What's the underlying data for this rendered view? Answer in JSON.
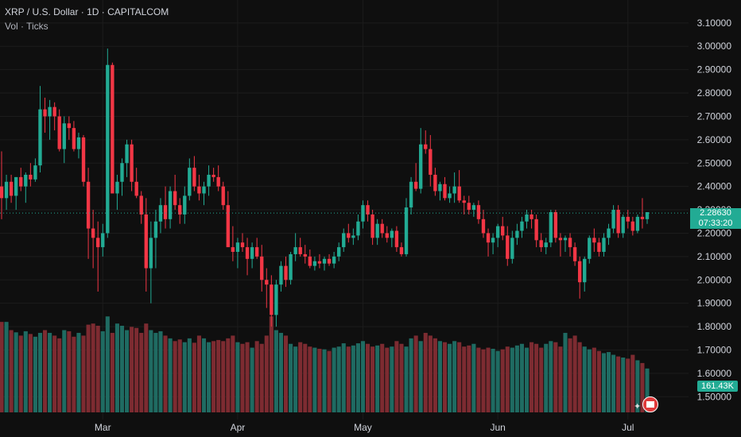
{
  "header": {
    "title": "XRP / U.S. Dollar · 1D · CAPITALCOM",
    "subtitle": "Vol · Ticks"
  },
  "price_tag": {
    "price": "2.28630",
    "countdown": "07:33:20"
  },
  "volume_tag": "161.43K",
  "colors": {
    "up": "#22ab94",
    "down": "#f23645",
    "up_vol": "#1f6b62",
    "down_vol": "#7d2b31",
    "grid": "#1c1c1c",
    "axis_text": "#d1d4dc"
  },
  "chart_data": {
    "type": "candlestick",
    "y_axis": {
      "min": 1.45,
      "max": 3.13,
      "ticks": [
        1.5,
        1.6,
        1.7,
        1.8,
        1.9,
        2.0,
        2.1,
        2.2,
        2.3,
        2.4,
        2.5,
        2.6,
        2.7,
        2.8,
        2.9,
        3.0,
        3.1
      ],
      "tick_labels": [
        "1.50000",
        "1.60000",
        "1.70000",
        "1.80000",
        "1.90000",
        "2.00000",
        "2.10000",
        "2.20000",
        "2.30000",
        "2.40000",
        "2.50000",
        "2.60000",
        "2.70000",
        "2.80000",
        "2.90000",
        "3.00000",
        "3.10000"
      ]
    },
    "x_axis": {
      "labels": [
        {
          "label": "Mar",
          "index": 21
        },
        {
          "label": "Apr",
          "index": 49
        },
        {
          "label": "May",
          "index": 75
        },
        {
          "label": "Jun",
          "index": 103
        },
        {
          "label": "Jul",
          "index": 130
        }
      ]
    },
    "last_price": 2.2863,
    "ohlc": [
      [
        2.4,
        2.55,
        2.26,
        2.35
      ],
      [
        2.35,
        2.45,
        2.3,
        2.42
      ],
      [
        2.42,
        2.45,
        2.33,
        2.36
      ],
      [
        2.36,
        2.44,
        2.3,
        2.44
      ],
      [
        2.44,
        2.48,
        2.38,
        2.4
      ],
      [
        2.4,
        2.46,
        2.33,
        2.45
      ],
      [
        2.45,
        2.5,
        2.4,
        2.43
      ],
      [
        2.43,
        2.52,
        2.42,
        2.49
      ],
      [
        2.49,
        2.83,
        2.46,
        2.73
      ],
      [
        2.73,
        2.78,
        2.63,
        2.7
      ],
      [
        2.7,
        2.77,
        2.6,
        2.74
      ],
      [
        2.74,
        2.76,
        2.64,
        2.7
      ],
      [
        2.7,
        2.73,
        2.55,
        2.56
      ],
      [
        2.56,
        2.7,
        2.5,
        2.67
      ],
      [
        2.67,
        2.7,
        2.6,
        2.65
      ],
      [
        2.65,
        2.68,
        2.55,
        2.56
      ],
      [
        2.56,
        2.63,
        2.52,
        2.61
      ],
      [
        2.61,
        2.62,
        2.4,
        2.42
      ],
      [
        2.42,
        2.48,
        2.09,
        2.22
      ],
      [
        2.22,
        2.3,
        2.05,
        2.18
      ],
      [
        2.18,
        2.25,
        1.95,
        2.14
      ],
      [
        2.14,
        2.24,
        2.1,
        2.2
      ],
      [
        2.2,
        2.99,
        2.18,
        2.92
      ],
      [
        2.92,
        2.93,
        2.38,
        2.37
      ],
      [
        2.37,
        2.45,
        2.3,
        2.42
      ],
      [
        2.42,
        2.52,
        2.36,
        2.5
      ],
      [
        2.5,
        2.6,
        2.44,
        2.58
      ],
      [
        2.58,
        2.6,
        2.38,
        2.42
      ],
      [
        2.42,
        2.48,
        2.35,
        2.36
      ],
      [
        2.36,
        2.38,
        2.24,
        2.28
      ],
      [
        2.28,
        2.35,
        1.95,
        2.05
      ],
      [
        2.05,
        2.25,
        1.9,
        2.18
      ],
      [
        2.18,
        2.3,
        2.05,
        2.25
      ],
      [
        2.25,
        2.35,
        2.2,
        2.32
      ],
      [
        2.32,
        2.4,
        2.22,
        2.26
      ],
      [
        2.26,
        2.4,
        2.22,
        2.38
      ],
      [
        2.38,
        2.45,
        2.3,
        2.32
      ],
      [
        2.32,
        2.35,
        2.24,
        2.28
      ],
      [
        2.28,
        2.4,
        2.24,
        2.36
      ],
      [
        2.36,
        2.52,
        2.34,
        2.48
      ],
      [
        2.48,
        2.53,
        2.38,
        2.4
      ],
      [
        2.4,
        2.45,
        2.34,
        2.37
      ],
      [
        2.37,
        2.42,
        2.32,
        2.4
      ],
      [
        2.4,
        2.49,
        2.36,
        2.45
      ],
      [
        2.45,
        2.48,
        2.42,
        2.44
      ],
      [
        2.44,
        2.49,
        2.38,
        2.4
      ],
      [
        2.4,
        2.42,
        2.3,
        2.32
      ],
      [
        2.32,
        2.38,
        2.15,
        2.14
      ],
      [
        2.14,
        2.23,
        2.08,
        2.12
      ],
      [
        2.12,
        2.18,
        2.05,
        2.16
      ],
      [
        2.16,
        2.2,
        2.12,
        2.14
      ],
      [
        2.14,
        2.18,
        2.02,
        2.09
      ],
      [
        2.09,
        2.16,
        2.05,
        2.14
      ],
      [
        2.14,
        2.18,
        2.09,
        2.1
      ],
      [
        2.1,
        2.15,
        1.95,
        2.0
      ],
      [
        2.0,
        2.05,
        1.88,
        1.98
      ],
      [
        1.98,
        2.02,
        1.8,
        1.85
      ],
      [
        1.85,
        2.0,
        1.8,
        1.98
      ],
      [
        1.98,
        2.08,
        1.95,
        2.06
      ],
      [
        2.06,
        2.1,
        1.97,
        2.0
      ],
      [
        2.0,
        2.12,
        1.98,
        2.11
      ],
      [
        2.11,
        2.2,
        2.08,
        2.14
      ],
      [
        2.14,
        2.18,
        2.1,
        2.11
      ],
      [
        2.11,
        2.15,
        2.07,
        2.1
      ],
      [
        2.1,
        2.13,
        2.05,
        2.06
      ],
      [
        2.06,
        2.1,
        2.04,
        2.08
      ],
      [
        2.08,
        2.11,
        2.05,
        2.07
      ],
      [
        2.07,
        2.1,
        2.04,
        2.09
      ],
      [
        2.09,
        2.11,
        2.06,
        2.07
      ],
      [
        2.07,
        2.12,
        2.05,
        2.1
      ],
      [
        2.1,
        2.16,
        2.08,
        2.14
      ],
      [
        2.14,
        2.22,
        2.12,
        2.2
      ],
      [
        2.2,
        2.24,
        2.16,
        2.18
      ],
      [
        2.18,
        2.22,
        2.15,
        2.19
      ],
      [
        2.19,
        2.28,
        2.17,
        2.25
      ],
      [
        2.25,
        2.34,
        2.22,
        2.32
      ],
      [
        2.32,
        2.34,
        2.25,
        2.28
      ],
      [
        2.28,
        2.3,
        2.15,
        2.18
      ],
      [
        2.18,
        2.26,
        2.15,
        2.24
      ],
      [
        2.24,
        2.26,
        2.18,
        2.2
      ],
      [
        2.2,
        2.23,
        2.16,
        2.18
      ],
      [
        2.18,
        2.22,
        2.14,
        2.21
      ],
      [
        2.21,
        2.23,
        2.12,
        2.14
      ],
      [
        2.14,
        2.16,
        2.1,
        2.11
      ],
      [
        2.11,
        2.35,
        2.1,
        2.31
      ],
      [
        2.31,
        2.44,
        2.28,
        2.42
      ],
      [
        2.42,
        2.5,
        2.38,
        2.39
      ],
      [
        2.39,
        2.65,
        2.37,
        2.58
      ],
      [
        2.58,
        2.64,
        2.54,
        2.56
      ],
      [
        2.56,
        2.62,
        2.4,
        2.45
      ],
      [
        2.45,
        2.48,
        2.36,
        2.38
      ],
      [
        2.38,
        2.42,
        2.34,
        2.41
      ],
      [
        2.41,
        2.44,
        2.34,
        2.35
      ],
      [
        2.35,
        2.4,
        2.33,
        2.37
      ],
      [
        2.37,
        2.46,
        2.33,
        2.4
      ],
      [
        2.4,
        2.47,
        2.33,
        2.34
      ],
      [
        2.34,
        2.36,
        2.28,
        2.33
      ],
      [
        2.33,
        2.36,
        2.28,
        2.3
      ],
      [
        2.3,
        2.33,
        2.27,
        2.32
      ],
      [
        2.32,
        2.34,
        2.24,
        2.26
      ],
      [
        2.26,
        2.3,
        2.18,
        2.2
      ],
      [
        2.2,
        2.22,
        2.1,
        2.16
      ],
      [
        2.16,
        2.2,
        2.11,
        2.18
      ],
      [
        2.18,
        2.24,
        2.14,
        2.23
      ],
      [
        2.23,
        2.27,
        2.17,
        2.19
      ],
      [
        2.19,
        2.23,
        2.06,
        2.09
      ],
      [
        2.09,
        2.21,
        2.07,
        2.18
      ],
      [
        2.18,
        2.24,
        2.15,
        2.21
      ],
      [
        2.21,
        2.27,
        2.18,
        2.25
      ],
      [
        2.25,
        2.3,
        2.22,
        2.28
      ],
      [
        2.28,
        2.3,
        2.22,
        2.26
      ],
      [
        2.26,
        2.28,
        2.14,
        2.17
      ],
      [
        2.17,
        2.2,
        2.12,
        2.14
      ],
      [
        2.14,
        2.18,
        2.11,
        2.16
      ],
      [
        2.16,
        2.3,
        2.14,
        2.29
      ],
      [
        2.29,
        2.3,
        2.16,
        2.18
      ],
      [
        2.18,
        2.2,
        2.1,
        2.17
      ],
      [
        2.17,
        2.19,
        2.12,
        2.18
      ],
      [
        2.18,
        2.2,
        2.1,
        2.14
      ],
      [
        2.14,
        2.16,
        2.06,
        2.08
      ],
      [
        2.08,
        2.1,
        1.92,
        1.99
      ],
      [
        1.99,
        2.1,
        1.95,
        2.09
      ],
      [
        2.09,
        2.19,
        2.07,
        2.18
      ],
      [
        2.18,
        2.22,
        2.12,
        2.16
      ],
      [
        2.16,
        2.18,
        2.1,
        2.12
      ],
      [
        2.12,
        2.2,
        2.1,
        2.18
      ],
      [
        2.18,
        2.24,
        2.15,
        2.22
      ],
      [
        2.22,
        2.32,
        2.2,
        2.3
      ],
      [
        2.3,
        2.32,
        2.18,
        2.2
      ],
      [
        2.2,
        2.28,
        2.18,
        2.27
      ],
      [
        2.27,
        2.3,
        2.22,
        2.25
      ],
      [
        2.25,
        2.27,
        2.19,
        2.21
      ],
      [
        2.21,
        2.28,
        2.2,
        2.27
      ],
      [
        2.27,
        2.35,
        2.22,
        2.26
      ],
      [
        2.26,
        2.29,
        2.24,
        2.29
      ]
    ],
    "volume": [
      165,
      165,
      150,
      146,
      140,
      148,
      143,
      138,
      145,
      150,
      145,
      140,
      135,
      150,
      148,
      138,
      145,
      140,
      160,
      162,
      158,
      148,
      175,
      145,
      162,
      158,
      150,
      156,
      154,
      145,
      162,
      150,
      145,
      148,
      140,
      135,
      130,
      133,
      128,
      135,
      127,
      140,
      135,
      128,
      130,
      132,
      130,
      135,
      140,
      128,
      125,
      128,
      118,
      130,
      125,
      140,
      175,
      150,
      145,
      140,
      125,
      120,
      128,
      125,
      120,
      118,
      116,
      115,
      112,
      118,
      120,
      126,
      120,
      122,
      126,
      130,
      125,
      120,
      122,
      125,
      118,
      120,
      130,
      125,
      120,
      135,
      140,
      130,
      145,
      140,
      135,
      130,
      128,
      125,
      130,
      128,
      120,
      122,
      125,
      118,
      115,
      118,
      116,
      112,
      115,
      120,
      118,
      122,
      125,
      118,
      128,
      125,
      118,
      125,
      130,
      128,
      120,
      145,
      135,
      140,
      128,
      120,
      115,
      118,
      112,
      108,
      110,
      105,
      102,
      100,
      98,
      105,
      95,
      90,
      80
    ]
  }
}
